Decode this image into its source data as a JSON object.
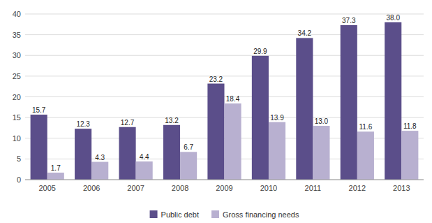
{
  "chart_data": {
    "type": "bar",
    "categories": [
      "2005",
      "2006",
      "2007",
      "2008",
      "2009",
      "2010",
      "2011",
      "2012",
      "2013"
    ],
    "series": [
      {
        "name": "Public debt",
        "color": "#5b4e8a",
        "values": [
          15.7,
          12.3,
          12.7,
          13.2,
          23.2,
          29.9,
          34.2,
          37.3,
          38.0
        ],
        "value_labels": [
          "15.7",
          "12.3",
          "12.7",
          "13.2",
          "23.2",
          "29.9",
          "34.2",
          "37.3",
          "38.0"
        ]
      },
      {
        "name": "Gross financing needs",
        "color": "#b8b0d0",
        "values": [
          1.7,
          4.3,
          4.4,
          6.7,
          18.4,
          13.9,
          13.0,
          11.6,
          11.8
        ],
        "value_labels": [
          "1.7",
          "4.3",
          "4.4",
          "6.7",
          "18.4",
          "13.9",
          "13.0",
          "11.6",
          "11.8"
        ]
      }
    ],
    "ylim": [
      0,
      40
    ],
    "yticks": [
      0,
      5,
      10,
      15,
      20,
      25,
      30,
      35,
      40
    ],
    "grid": true,
    "data_labels": true,
    "legend": "bottom"
  }
}
